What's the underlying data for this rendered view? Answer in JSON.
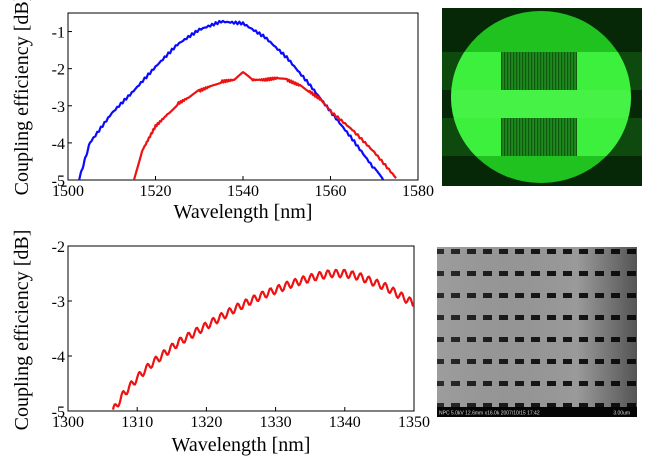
{
  "chart_data": [
    {
      "type": "line",
      "xlabel": "Wavelength [nm]",
      "ylabel": "Coupling efficiency [dB]",
      "xlim": [
        1500,
        1580
      ],
      "ylim": [
        -5,
        -0.5
      ],
      "xticks": [
        1500,
        1520,
        1540,
        1560,
        1580
      ],
      "yticks": [
        -1,
        -2,
        -3,
        -4,
        -5
      ],
      "xtick_labels": [
        "1500",
        "1520",
        "1540",
        "1560",
        "1580"
      ],
      "ytick_labels": [
        "-1",
        "-2",
        "-3",
        "-4",
        "-5"
      ],
      "grid": false,
      "series": [
        {
          "color": "#0a0aff",
          "x": [
            1502.5,
            1505,
            1510,
            1515,
            1520,
            1525,
            1530,
            1535,
            1540,
            1545,
            1550,
            1555,
            1560,
            1565,
            1570,
            1572
          ],
          "y": [
            -5.0,
            -4.0,
            -3.2,
            -2.6,
            -1.95,
            -1.35,
            -0.95,
            -0.73,
            -0.78,
            -1.15,
            -1.7,
            -2.4,
            -3.15,
            -3.9,
            -4.7,
            -5.0
          ]
        },
        {
          "color": "#ee1111",
          "x": [
            1515,
            1517,
            1520,
            1523,
            1525,
            1528,
            1530,
            1533,
            1535,
            1538,
            1540,
            1542,
            1545,
            1548,
            1550,
            1553,
            1555,
            1558,
            1560,
            1565,
            1570,
            1575
          ],
          "y": [
            -5.0,
            -4.2,
            -3.55,
            -3.2,
            -2.95,
            -2.75,
            -2.6,
            -2.45,
            -2.35,
            -2.3,
            -2.12,
            -2.3,
            -2.3,
            -2.25,
            -2.3,
            -2.45,
            -2.6,
            -2.85,
            -3.15,
            -3.65,
            -4.25,
            -4.95
          ]
        }
      ]
    },
    {
      "type": "line",
      "xlabel": "Wavelength [nm]",
      "ylabel": "Coupling efficiency [dB]",
      "xlim": [
        1300,
        1350
      ],
      "ylim": [
        -5,
        -2
      ],
      "xticks": [
        1300,
        1310,
        1320,
        1330,
        1340,
        1350
      ],
      "yticks": [
        -2,
        -3,
        -4,
        -5
      ],
      "xtick_labels": [
        "1300",
        "1310",
        "1320",
        "1330",
        "1340",
        "1350"
      ],
      "ytick_labels": [
        "-2",
        "-3",
        "-4",
        "-5"
      ],
      "grid": false,
      "series": [
        {
          "color": "#ee1111",
          "x": [
            1306.5,
            1308,
            1310,
            1312,
            1314,
            1316,
            1318,
            1320,
            1322,
            1324,
            1326,
            1328,
            1330,
            1332,
            1334,
            1336,
            1338,
            1340,
            1342,
            1344,
            1346,
            1348,
            1350
          ],
          "y": [
            -5.0,
            -4.7,
            -4.4,
            -4.15,
            -3.95,
            -3.75,
            -3.6,
            -3.45,
            -3.3,
            -3.15,
            -3.02,
            -2.9,
            -2.8,
            -2.7,
            -2.62,
            -2.55,
            -2.5,
            -2.5,
            -2.55,
            -2.65,
            -2.75,
            -2.9,
            -3.05
          ]
        }
      ]
    }
  ],
  "sem_caption": {
    "left": "NPC  5.0kV  12.6mm x16.0k  2007/10/15 17:42",
    "right": "3.00um"
  }
}
